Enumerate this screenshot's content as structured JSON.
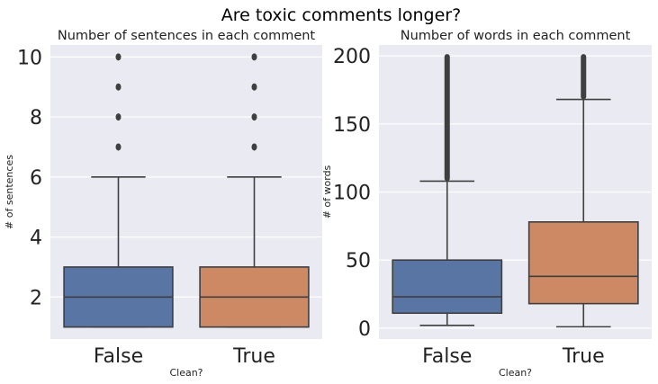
{
  "figure": {
    "suptitle": "Are toxic comments longer?"
  },
  "colors": {
    "background": "#eaeaf2",
    "grid": "#ffffff",
    "box_false": "#5975a4",
    "box_true": "#cc8963",
    "line": "#3f3f3f",
    "text": "#222222"
  },
  "chart_data": [
    {
      "type": "box",
      "title": "Number of sentences in each comment",
      "xlabel": "Clean?",
      "ylabel": "# of sentences",
      "categories": [
        "False",
        "True"
      ],
      "ylim": [
        0.6,
        10.4
      ],
      "yticks": [
        2,
        4,
        6,
        8,
        10
      ],
      "grid": true,
      "boxes": [
        {
          "category": "False",
          "whisker_low": 1,
          "q1": 1,
          "median": 2,
          "q3": 3,
          "whisker_high": 6,
          "outliers": [
            7,
            8,
            9,
            10
          ]
        },
        {
          "category": "True",
          "whisker_low": 1,
          "q1": 1,
          "median": 2,
          "q3": 3,
          "whisker_high": 6,
          "outliers": [
            7,
            8,
            9,
            10
          ]
        }
      ]
    },
    {
      "type": "box",
      "title": "Number of words in each comment",
      "xlabel": "Clean?",
      "ylabel": "# of words",
      "categories": [
        "False",
        "True"
      ],
      "ylim": [
        -8,
        208
      ],
      "yticks": [
        0,
        50,
        100,
        150,
        200
      ],
      "grid": true,
      "boxes": [
        {
          "category": "False",
          "whisker_low": 2,
          "q1": 11,
          "median": 23,
          "q3": 50,
          "whisker_high": 108,
          "outlier_range": [
            108,
            200
          ]
        },
        {
          "category": "True",
          "whisker_low": 1,
          "q1": 18,
          "median": 38,
          "q3": 78,
          "whisker_high": 168,
          "outlier_range": [
            168,
            200
          ]
        }
      ]
    }
  ]
}
